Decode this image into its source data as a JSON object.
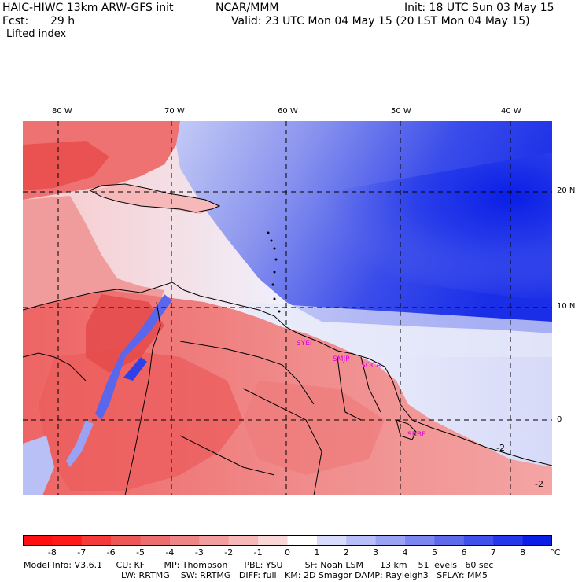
{
  "header": {
    "model": "HAIC-HIWC 13km ARW-GFS init",
    "org": "NCAR/MMM",
    "init": "Init: 18 UTC Sun 03 May 15",
    "fcst_label": "Fcst:",
    "fcst_value": "29 h",
    "valid": "Valid: 23 UTC Mon 04 May 15 (20 LST Mon 04 May 15)",
    "field": "Lifted index"
  },
  "map": {
    "lon_labels": [
      "80 W",
      "70 W",
      "60 W",
      "50 W",
      "40 W"
    ],
    "lat_labels": [
      "20 N",
      "10 N",
      "0"
    ],
    "stations": [
      "SYEI",
      "SMJP",
      "SOCA",
      "SBBE"
    ],
    "contour_labels": [
      "-2",
      "-2"
    ]
  },
  "colorbar": {
    "labels": [
      "-8",
      "-7",
      "-6",
      "-5",
      "-4",
      "-3",
      "-2",
      "-1",
      "0",
      "1",
      "2",
      "3",
      "4",
      "5",
      "6",
      "7",
      "8"
    ],
    "unit": "°C",
    "colors": [
      "#ff1a1a",
      "#f43a3a",
      "#ef5656",
      "#ec6e6e",
      "#ee8686",
      "#f29e9e",
      "#f6b8b8",
      "#fad6d6",
      "#ffffff",
      "#d8dcfc",
      "#b8bef8",
      "#9aa2f4",
      "#7c86f0",
      "#5e6aec",
      "#4050ea",
      "#2438ea",
      "#0a1ee6"
    ]
  },
  "model_info": {
    "line1": "Model Info: V3.6.1     CU: KF       MP: Thompson      PBL: YSU        SF: Noah LSM      13 km    51 levels   60 sec",
    "line2": "LW: RRTMG    SW: RRTMG   DIFF: full   KM: 2D Smagor DAMP: Rayleigh3   SFLAY: MM5"
  }
}
